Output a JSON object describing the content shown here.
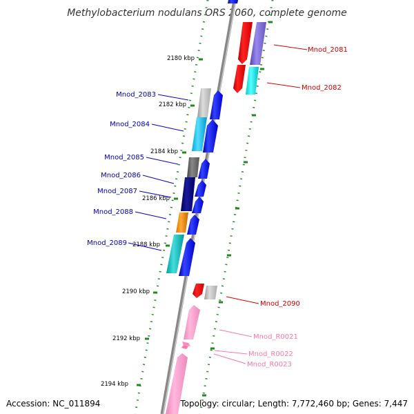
{
  "title": "Methylobacterium nodulans ORS 2060, complete genome",
  "footer": {
    "accession": "Accession: NC_011894",
    "summary": "Topology: circular; Length: 7,772,460 bp; Genes: 7,447"
  },
  "colors": {
    "plus_strand_blue": "#0000ee",
    "minus_strand_red": "#ee0000",
    "rna_pink": "#ff99cc",
    "label_blue": "#0000aa",
    "label_red": "#cc0000",
    "label_pink": "#ff77aa",
    "tick_green": "#228822"
  },
  "ticks": [
    "2180 kbp",
    "2182 kbp",
    "2184 kbp",
    "2186 kbp",
    "2188 kbp",
    "2190 kbp",
    "2192 kbp",
    "2194 kbp"
  ],
  "genes": [
    {
      "label": "Mnod_2081",
      "color": "red"
    },
    {
      "label": "Mnod_2082",
      "color": "red"
    },
    {
      "label": "Mnod_2083",
      "color": "blue"
    },
    {
      "label": "Mnod_2084",
      "color": "blue"
    },
    {
      "label": "Mnod_2085",
      "color": "blue"
    },
    {
      "label": "Mnod_2086",
      "color": "blue"
    },
    {
      "label": "Mnod_2087",
      "color": "blue"
    },
    {
      "label": "Mnod_2088",
      "color": "blue"
    },
    {
      "label": "Mnod_2089",
      "color": "blue"
    },
    {
      "label": "Mnod_2090",
      "color": "red"
    },
    {
      "label": "Mnod_R0021",
      "color": "pink"
    },
    {
      "label": "Mnod_R0022",
      "color": "pink"
    },
    {
      "label": "Mnod_R0023",
      "color": "pink"
    }
  ]
}
